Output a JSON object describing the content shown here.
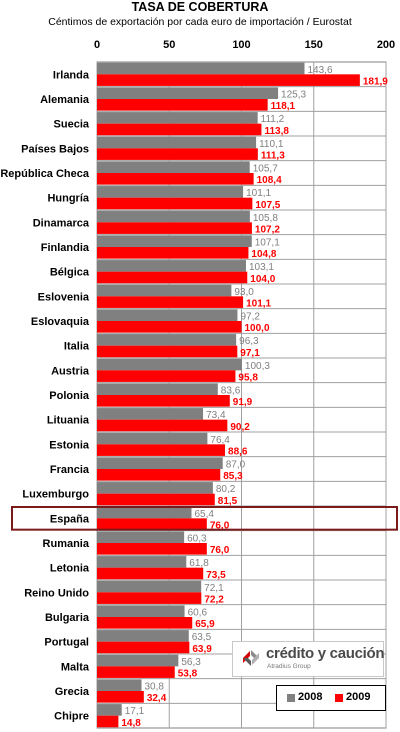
{
  "chart_data": {
    "type": "bar",
    "orientation": "horizontal",
    "title": "TASA DE COBERTURA",
    "subtitle": "Céntimos de exportación por cada euro de importación / Eurostat",
    "xlim": [
      0,
      200
    ],
    "xticks": [
      "0",
      "50",
      "100",
      "150",
      "200"
    ],
    "grid": true,
    "legend_position": "bottom-right",
    "highlighted_category": "España",
    "categories": [
      "Irlanda",
      "Alemania",
      "Suecia",
      "Países Bajos",
      "República Checa",
      "Hungría",
      "Dinamarca",
      "Finlandia",
      "Bélgica",
      "Eslovenia",
      "Eslovaquia",
      "Italia",
      "Austria",
      "Polonia",
      "Lituania",
      "Estonia",
      "Francia",
      "Luxemburgo",
      "España",
      "Rumania",
      "Letonia",
      "Reino Unido",
      "Bulgaria",
      "Portugal",
      "Malta",
      "Grecia",
      "Chipre"
    ],
    "series": [
      {
        "name": "2008",
        "color": "#808080",
        "values": [
          143.6,
          125.3,
          111.2,
          110.1,
          105.7,
          101.1,
          105.8,
          107.1,
          103.1,
          93.0,
          97.2,
          96.3,
          100.3,
          83.6,
          73.4,
          76.4,
          87.0,
          80.2,
          65.4,
          60.3,
          61.8,
          72.1,
          60.6,
          63.5,
          56.3,
          30.8,
          17.1
        ],
        "labels": [
          "143,6",
          "125,3",
          "111,2",
          "110,1",
          "105,7",
          "101,1",
          "105,8",
          "107,1",
          "103,1",
          "93,0",
          "97,2",
          "96,3",
          "100,3",
          "83,6",
          "73,4",
          "76,4",
          "87,0",
          "80,2",
          "65,4",
          "60,3",
          "61,8",
          "72,1",
          "60,6",
          "63,5",
          "56,3",
          "30,8",
          "17,1"
        ]
      },
      {
        "name": "2009",
        "color": "#ff0000",
        "values": [
          181.9,
          118.1,
          113.8,
          111.3,
          108.4,
          107.5,
          107.2,
          104.8,
          104.0,
          101.1,
          100.0,
          97.1,
          95.8,
          91.9,
          90.2,
          88.6,
          85.3,
          81.5,
          76.0,
          76.0,
          73.5,
          72.2,
          65.9,
          63.9,
          53.8,
          32.4,
          14.8
        ],
        "labels": [
          "181,9",
          "118,1",
          "113,8",
          "111,3",
          "108,4",
          "107,5",
          "107,2",
          "104,8",
          "104,0",
          "101,1",
          "100,0",
          "97,1",
          "95,8",
          "91,9",
          "90,2",
          "88,6",
          "85,3",
          "81,5",
          "76,0",
          "76,0",
          "73,5",
          "72,2",
          "65,9",
          "63,9",
          "53,8",
          "32,4",
          "14,8"
        ]
      }
    ]
  },
  "colors": {
    "highlight_border": "#7a1a1a",
    "grid": "#a0a0a0"
  },
  "logo": {
    "text": "crédito y caución",
    "subtext": "Atradius Group"
  }
}
